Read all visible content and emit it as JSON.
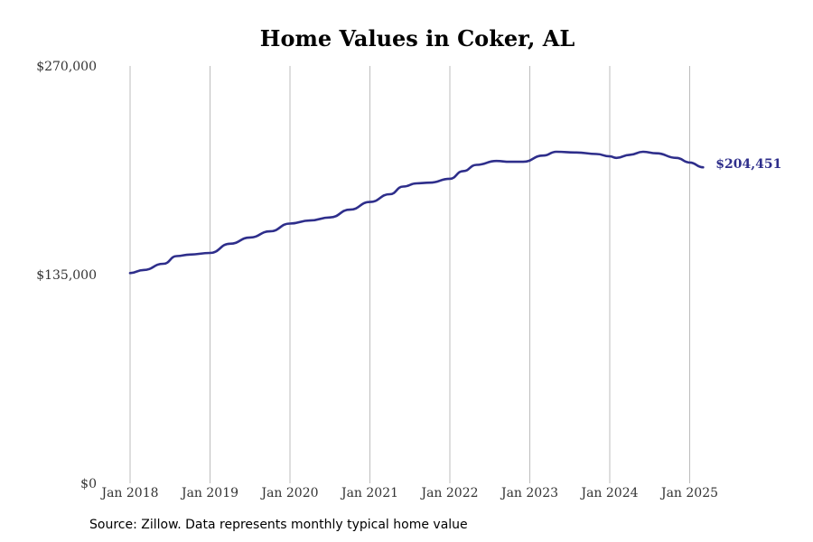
{
  "chart_data": {
    "type": "line",
    "title": "Home Values in Coker, AL",
    "xlabel": "",
    "ylabel": "",
    "x_tick_labels": [
      "Jan 2018",
      "Jan 2019",
      "Jan 2020",
      "Jan 2021",
      "Jan 2022",
      "Jan 2023",
      "Jan 2024",
      "Jan 2025"
    ],
    "y_tick_labels": [
      "$270,000",
      "$135,000",
      "$0"
    ],
    "ylim": [
      0,
      270000
    ],
    "xlim": [
      "2018-01",
      "2025-03"
    ],
    "grid": "vertical",
    "end_label": "$204,451",
    "series": [
      {
        "color": "#2e2e8b",
        "points": [
          {
            "x": "2018-01",
            "y": 136000
          },
          {
            "x": "2018-03",
            "y": 138000
          },
          {
            "x": "2018-06",
            "y": 142000
          },
          {
            "x": "2018-08",
            "y": 147000
          },
          {
            "x": "2018-10",
            "y": 148000
          },
          {
            "x": "2019-01",
            "y": 149000
          },
          {
            "x": "2019-04",
            "y": 155000
          },
          {
            "x": "2019-07",
            "y": 159000
          },
          {
            "x": "2019-10",
            "y": 163000
          },
          {
            "x": "2020-01",
            "y": 168000
          },
          {
            "x": "2020-04",
            "y": 170000
          },
          {
            "x": "2020-07",
            "y": 172000
          },
          {
            "x": "2020-10",
            "y": 177000
          },
          {
            "x": "2021-01",
            "y": 182000
          },
          {
            "x": "2021-04",
            "y": 187000
          },
          {
            "x": "2021-06",
            "y": 192000
          },
          {
            "x": "2021-08",
            "y": 194000
          },
          {
            "x": "2021-10",
            "y": 194500
          },
          {
            "x": "2022-01",
            "y": 197000
          },
          {
            "x": "2022-03",
            "y": 202000
          },
          {
            "x": "2022-05",
            "y": 206000
          },
          {
            "x": "2022-08",
            "y": 208500
          },
          {
            "x": "2022-10",
            "y": 208000
          },
          {
            "x": "2022-12",
            "y": 208000
          },
          {
            "x": "2023-03",
            "y": 212000
          },
          {
            "x": "2023-05",
            "y": 214500
          },
          {
            "x": "2023-08",
            "y": 214000
          },
          {
            "x": "2023-11",
            "y": 213000
          },
          {
            "x": "2024-01",
            "y": 211500
          },
          {
            "x": "2024-02",
            "y": 210500
          },
          {
            "x": "2024-04",
            "y": 212500
          },
          {
            "x": "2024-06",
            "y": 214500
          },
          {
            "x": "2024-08",
            "y": 213500
          },
          {
            "x": "2024-11",
            "y": 210500
          },
          {
            "x": "2025-01",
            "y": 207500
          },
          {
            "x": "2025-03",
            "y": 204451
          }
        ]
      }
    ]
  },
  "footer": {
    "source": "Source: Zillow. Data represents monthly typical home value"
  }
}
